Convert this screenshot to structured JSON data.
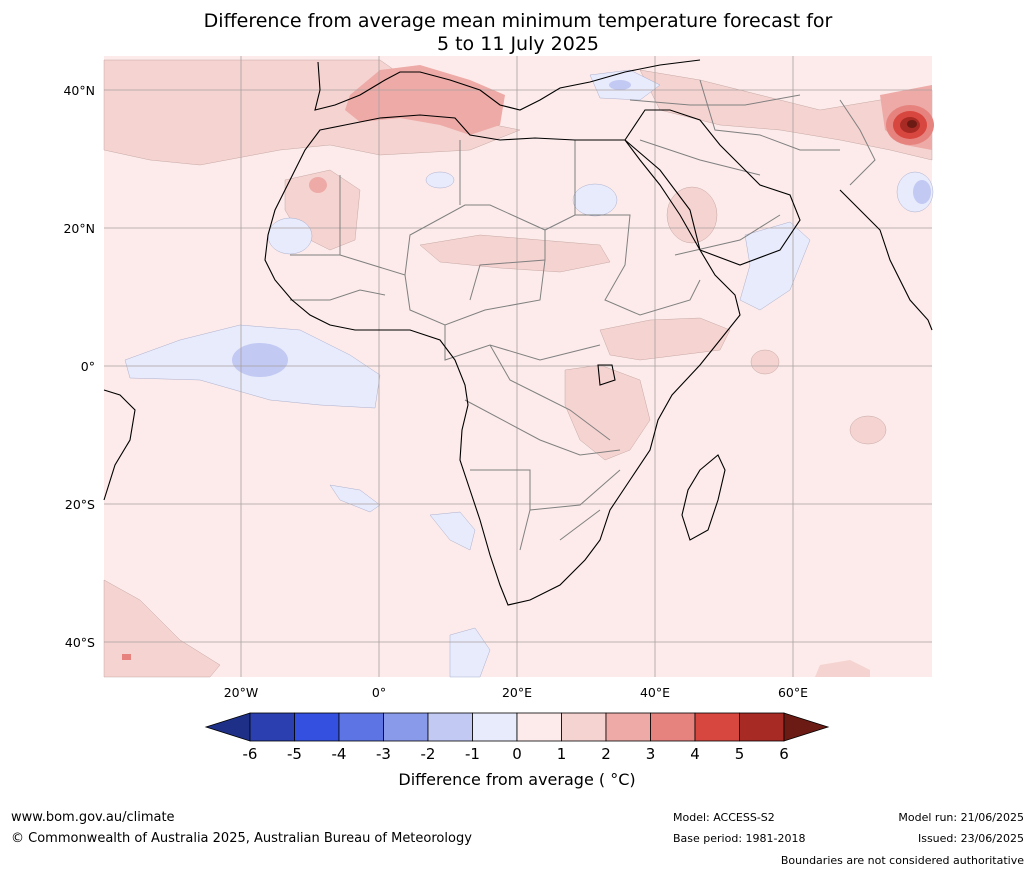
{
  "title_line1": "Difference from average mean minimum temperature forecast for",
  "title_line2": "5 to 11 July 2025",
  "lat_labels": [
    "40°N",
    "20°N",
    "0°",
    "20°S",
    "40°S"
  ],
  "lon_labels": [
    "20°W",
    "0°",
    "20°E",
    "40°E",
    "60°E"
  ],
  "colorbar": {
    "ticks": [
      "-6",
      "-5",
      "-4",
      "-3",
      "-2",
      "-1",
      "0",
      "1",
      "2",
      "3",
      "4",
      "5",
      "6"
    ],
    "colors": [
      "#1e2f87",
      "#2c3fb0",
      "#3350e0",
      "#5c74e4",
      "#8a9aea",
      "#c2c9f3",
      "#e8ebfb",
      "#fcebea",
      "#f5d3d0",
      "#edaaa6",
      "#e6837e",
      "#d8473f",
      "#a82a24",
      "#6b1b14"
    ],
    "title": "Difference from average ( °C)"
  },
  "footer": {
    "website": "www.bom.gov.au/climate",
    "copyright": "© Commonwealth of Australia 2025, Australian Bureau of Meteorology",
    "model": "Model: ACCESS-S2",
    "base_period": "Base period: 1981-2018",
    "model_run": "Model run: 21/06/2025",
    "issued": "Issued: 23/06/2025",
    "disclaimer": "Boundaries are not considered authoritative"
  }
}
